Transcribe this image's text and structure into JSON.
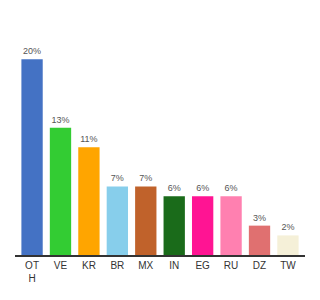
{
  "chart_data": {
    "type": "bar",
    "categories": [
      "OT\nH",
      "VE",
      "KR",
      "BR",
      "MX",
      "IN",
      "EG",
      "RU",
      "DZ",
      "TW"
    ],
    "values": [
      20,
      13,
      11,
      7,
      7,
      6,
      6,
      6,
      3,
      2
    ],
    "value_labels": [
      "20%",
      "13%",
      "11%",
      "7%",
      "7%",
      "6%",
      "6%",
      "6%",
      "3%",
      "2%"
    ],
    "data_labels": true,
    "colors": [
      "#4472C4",
      "#33CC33",
      "#FFA500",
      "#87CEEB",
      "#C0622B",
      "#1A6B1A",
      "#FF1493",
      "#FF80B0",
      "#E07070",
      "#F5F0D8"
    ],
    "ylim": [
      0,
      24
    ],
    "tick_labels": "x",
    "grid": false
  }
}
